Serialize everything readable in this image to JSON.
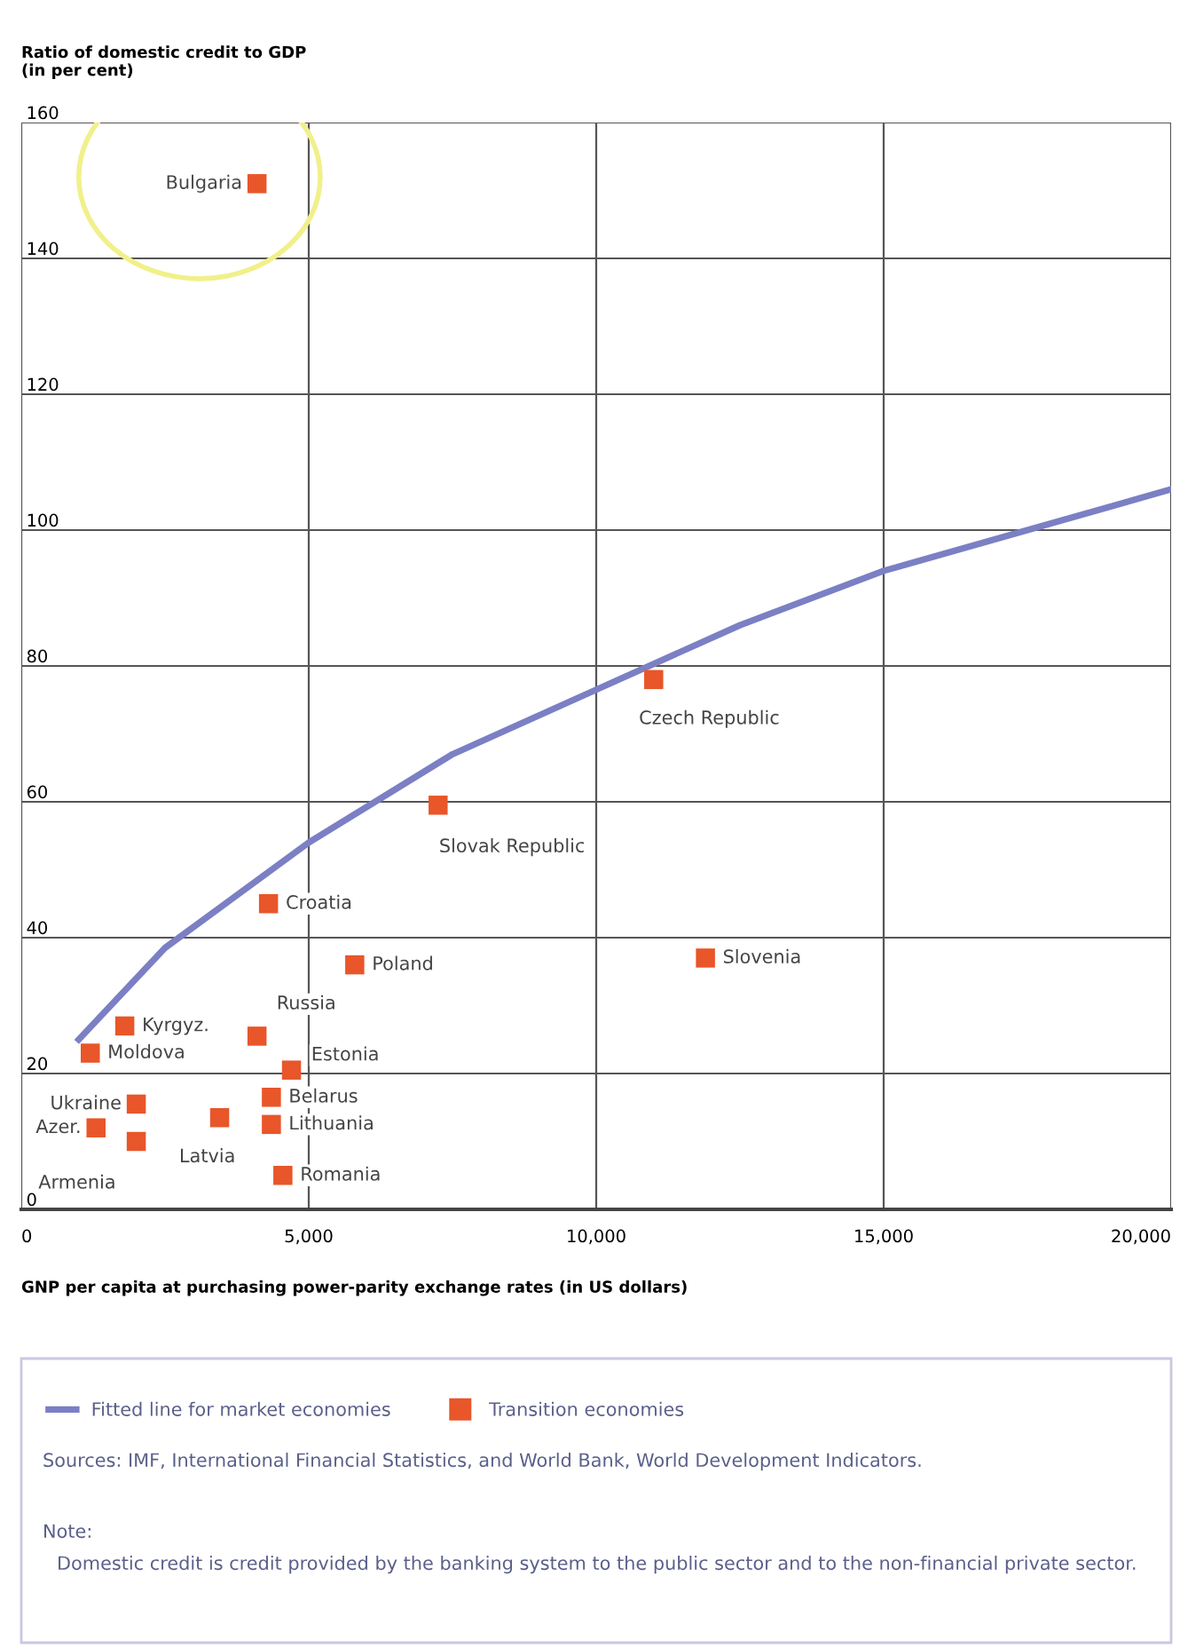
{
  "chart_data": {
    "type": "scatter",
    "ylabel": "Ratio of domestic credit to GDP\n(in per cent)",
    "xlabel": "GNP per capita at purchasing power-parity exchange rates (in US dollars)",
    "xlim": [
      0,
      20000
    ],
    "ylim": [
      0,
      160
    ],
    "xticks": [
      0,
      {
        "value": 5000,
        "label": "5,000"
      },
      {
        "value": 10000,
        "label": "10,000"
      },
      {
        "value": 15000,
        "label": "15,000"
      },
      {
        "value": 20000,
        "label": "20,000"
      }
    ],
    "yticks": [
      0,
      20,
      40,
      60,
      80,
      100,
      120,
      140,
      160
    ],
    "grid": true,
    "legend": "bottom",
    "series": [
      {
        "name": "Fitted line for market economies",
        "type": "line",
        "color": "#7b7fc4",
        "x": [
          1000,
          2500,
          5000,
          7500,
          10000,
          12500,
          15000,
          17500,
          20000
        ],
        "values": [
          25,
          38.5,
          54,
          67,
          76.5,
          86,
          94,
          100,
          106
        ]
      },
      {
        "name": "Transition economies",
        "marker": "square",
        "color": "#e8562a",
        "x": [
          4100,
          11000,
          7250,
          4300,
          5800,
          11900,
          1800,
          1200,
          4100,
          4700,
          2000,
          4350,
          4350,
          3450,
          1300,
          2000,
          4550
        ],
        "values": [
          151,
          78,
          59.5,
          45,
          36,
          37,
          27,
          23,
          25.5,
          20.5,
          15.5,
          16.5,
          12.5,
          13.5,
          12,
          10,
          5
        ]
      }
    ],
    "annotations": [
      {
        "text": "Bulgaria",
        "x": 4100,
        "y": 151
      },
      {
        "text": "Czech Republic",
        "x": 11000,
        "y": 78
      },
      {
        "text": "Slovak Republic",
        "x": 7250,
        "y": 59.5
      },
      {
        "text": "Croatia",
        "x": 4300,
        "y": 45
      },
      {
        "text": "Poland",
        "x": 5800,
        "y": 36
      },
      {
        "text": "Slovenia",
        "x": 11900,
        "y": 37
      },
      {
        "text": "Kyrgyz.",
        "x": 1800,
        "y": 27
      },
      {
        "text": "Moldova",
        "x": 1200,
        "y": 23
      },
      {
        "text": "Russia",
        "x": 4100,
        "y": 25.5
      },
      {
        "text": "Estonia",
        "x": 4700,
        "y": 20.5
      },
      {
        "text": "Ukraine",
        "x": 2000,
        "y": 15.5
      },
      {
        "text": "Belarus",
        "x": 4350,
        "y": 16.5
      },
      {
        "text": "Lithuania",
        "x": 4350,
        "y": 12.5
      },
      {
        "text": "Latvia",
        "x": 3450,
        "y": 13.5
      },
      {
        "text": "Azer.",
        "x": 1300,
        "y": 12
      },
      {
        "text": "Armenia",
        "x": 2000,
        "y": 10
      },
      {
        "text": "Romania",
        "x": 4550,
        "y": 5
      },
      "Sources: IMF, International Financial Statistics, and World Bank, World Development Indicators.",
      "Note:",
      "Domestic credit is credit provided by the banking system to the public sector and to the non-financial private sector."
    ]
  }
}
